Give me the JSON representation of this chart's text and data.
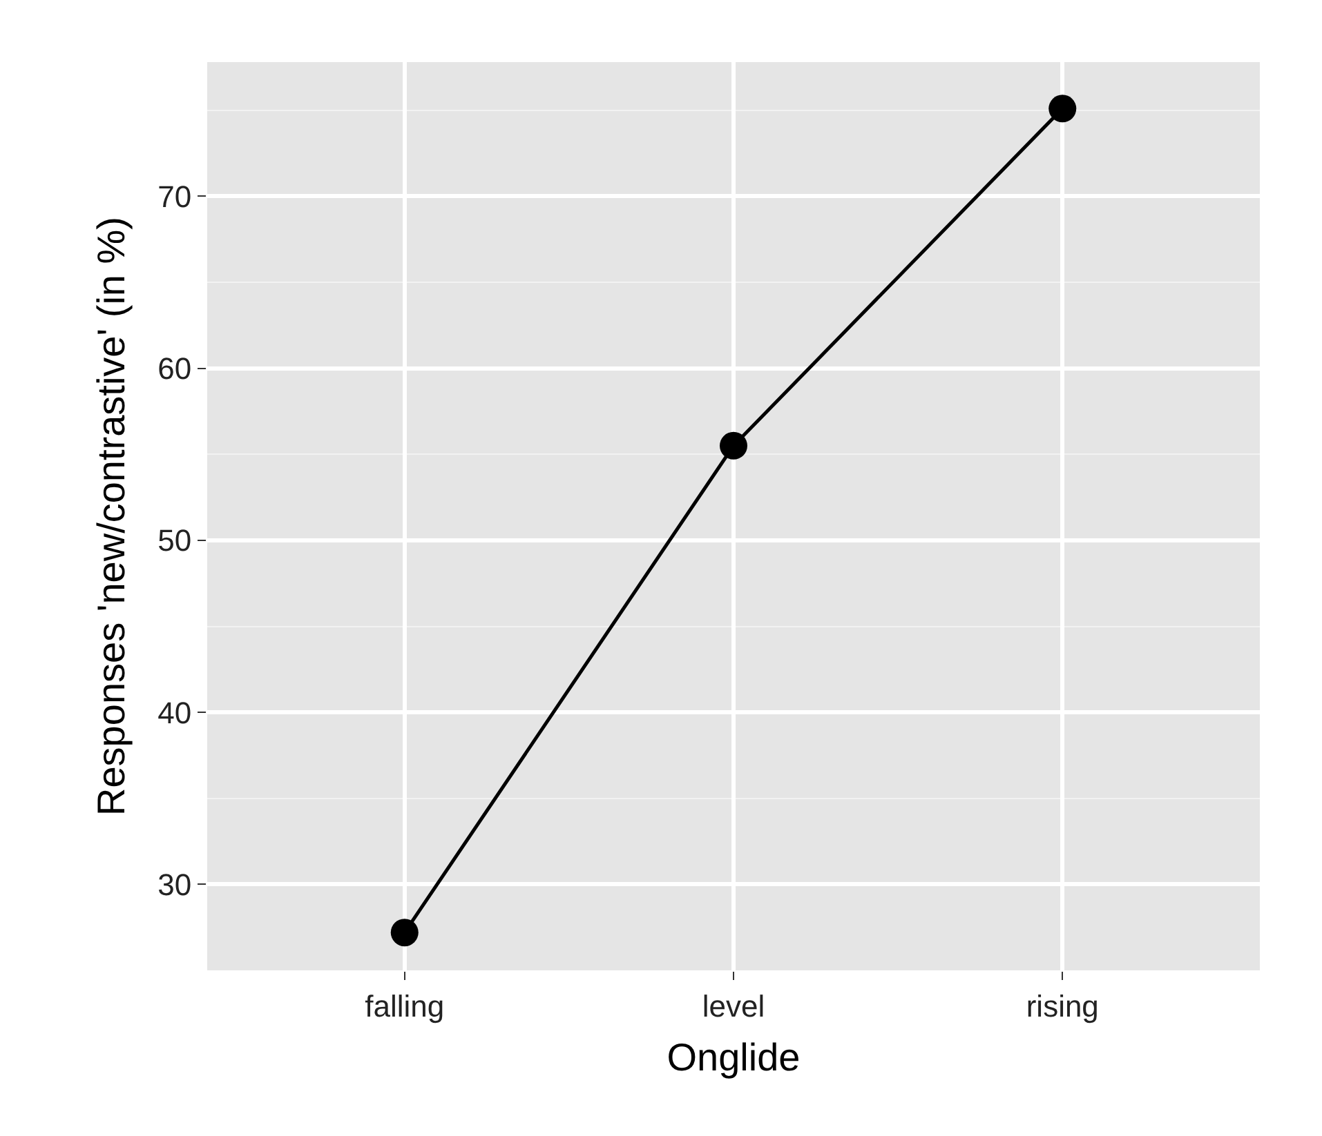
{
  "chart_data": {
    "type": "line",
    "xlabel": "Onglide",
    "ylabel": "Responses 'new/contrastive' (in %)",
    "categories": [
      "falling",
      "level",
      "rising"
    ],
    "series": [
      {
        "color": "#000000",
        "values": [
          27.2,
          55.5,
          75.1
        ]
      }
    ],
    "ylim": [
      25,
      77.8
    ],
    "yticks": [
      30,
      40,
      50,
      60,
      70
    ],
    "grid": true,
    "marker": "circle",
    "line_style": "solid",
    "legend": false
  }
}
